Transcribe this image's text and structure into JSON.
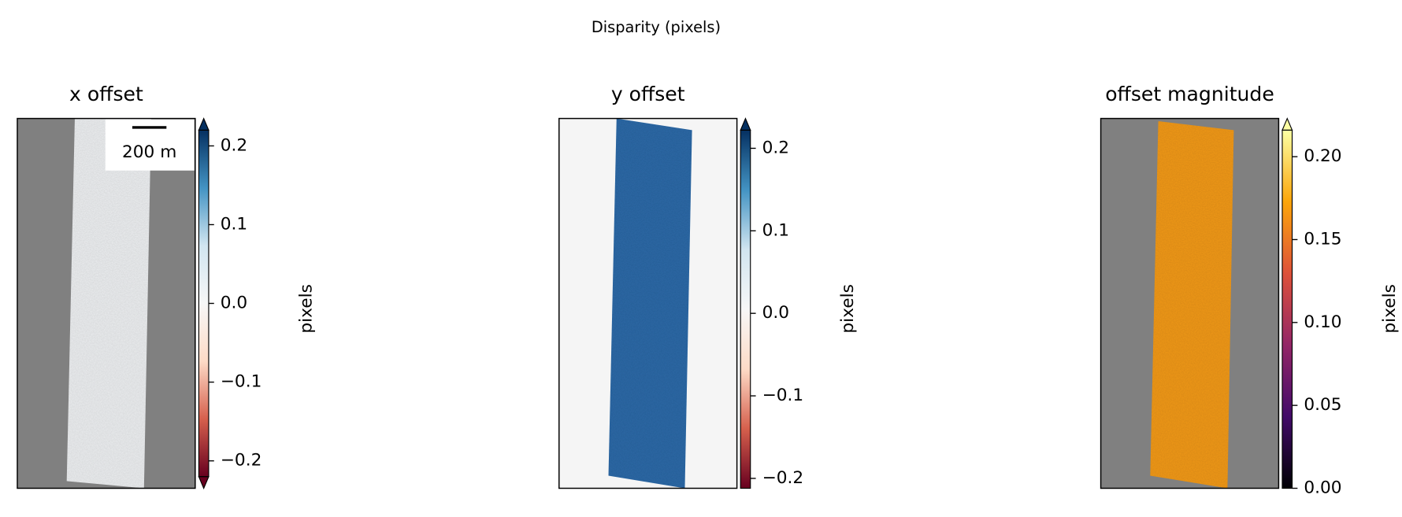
{
  "figure_title": "Disparity (pixels)",
  "chart_data": [
    {
      "type": "image",
      "title": "x offset",
      "background": "#808080",
      "image_color": "#eef0f2",
      "strip": [
        [
          83,
          132
        ],
        [
          168,
          132
        ],
        [
          160,
          544
        ],
        [
          74,
          536
        ]
      ],
      "scalebar": "200 m",
      "colorbar": {
        "label": "pixels",
        "lim": [
          -0.22,
          0.22
        ],
        "extend": "both",
        "cmap_colors": [
          "#67001f",
          "#d6604d",
          "#fddbc7",
          "#f7f7f7",
          "#d1e5f0",
          "#4393c3",
          "#053061"
        ],
        "ticks": [
          {
            "value": -0.2,
            "label": "−0.2"
          },
          {
            "value": -0.1,
            "label": "−0.1"
          },
          {
            "value": 0,
            "label": "0.0"
          },
          {
            "value": 0.1,
            "label": "0.1"
          },
          {
            "value": 0.2,
            "label": "0.2"
          }
        ]
      }
    },
    {
      "type": "image",
      "title": "y offset",
      "background": "#f5f5f5",
      "image_color": "#2f6aa8",
      "strip": [
        [
          686,
          132
        ],
        [
          770,
          145
        ],
        [
          762,
          544
        ],
        [
          677,
          530
        ]
      ],
      "colorbar": {
        "label": "pixels",
        "lim": [
          -0.212,
          0.222
        ],
        "extend": "max",
        "cmap_colors": [
          "#67001f",
          "#d6604d",
          "#fddbc7",
          "#f7f7f7",
          "#d1e5f0",
          "#4393c3",
          "#053061"
        ],
        "ticks": [
          {
            "value": -0.2,
            "label": "−0.2"
          },
          {
            "value": -0.1,
            "label": "−0.1"
          },
          {
            "value": 0,
            "label": "0.0"
          },
          {
            "value": 0.1,
            "label": "0.1"
          },
          {
            "value": 0.2,
            "label": "0.2"
          }
        ]
      }
    },
    {
      "type": "image",
      "title": "offset magnitude",
      "background": "#808080",
      "image_color": "#f29a1e",
      "strip": [
        [
          1289,
          135
        ],
        [
          1373,
          145
        ],
        [
          1366,
          544
        ],
        [
          1280,
          530
        ]
      ],
      "colorbar": {
        "label": "pixels",
        "lim": [
          0,
          0.216
        ],
        "extend": "max",
        "cmap_colors": [
          "#000004",
          "#420a68",
          "#932667",
          "#dd513a",
          "#fca50a",
          "#fcffa4"
        ],
        "ticks": [
          {
            "value": 0,
            "label": "0.00"
          },
          {
            "value": 0.05,
            "label": "0.05"
          },
          {
            "value": 0.1,
            "label": "0.10"
          },
          {
            "value": 0.15,
            "label": "0.15"
          },
          {
            "value": 0.2,
            "label": "0.20"
          }
        ]
      }
    }
  ]
}
